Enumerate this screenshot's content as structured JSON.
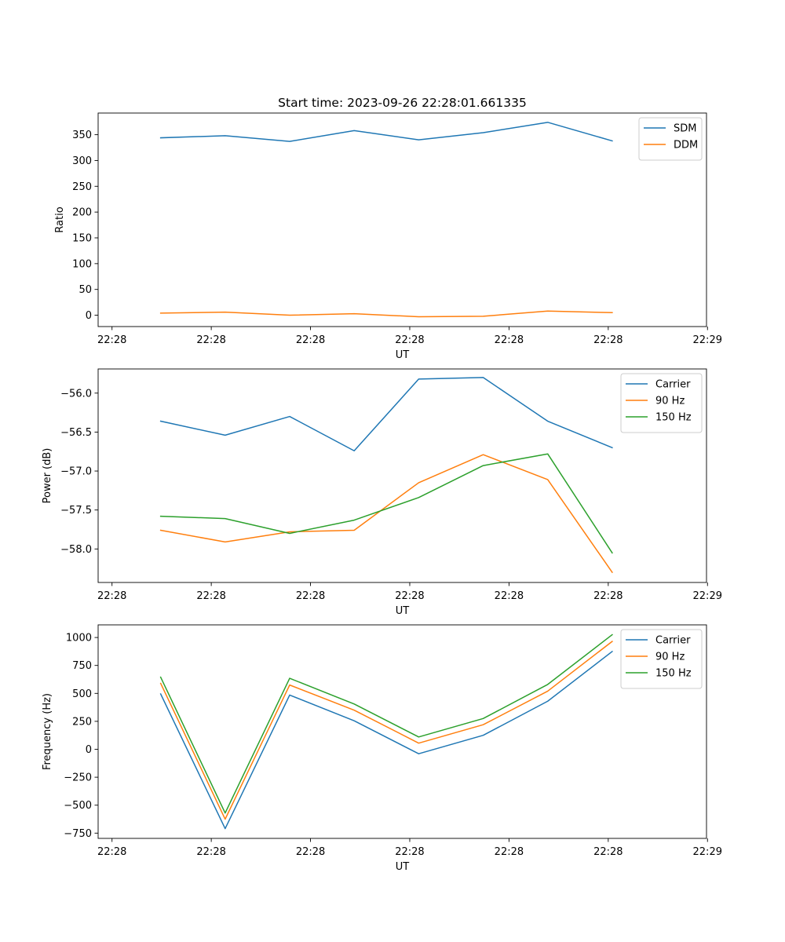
{
  "figure_title": "Start time: 2023-09-26 22:28:01.661335",
  "colors": {
    "blue": "#1f77b4",
    "orange": "#ff7f0e",
    "green": "#2ca02c",
    "axis": "#000000",
    "legend_border": "#cccccc"
  },
  "chart_data": [
    {
      "type": "line",
      "title": "Start time: 2023-09-26 22:28:01.661335",
      "xlabel": "UT",
      "ylabel": "Ratio",
      "x_tick_labels": [
        "22:28",
        "22:28",
        "22:28",
        "22:28",
        "22:28",
        "22:28",
        "22:29"
      ],
      "x_tick_values": [
        0,
        1,
        2,
        3,
        4,
        5,
        6
      ],
      "xlim": [
        -0.14,
        5.99
      ],
      "x": [
        0.49,
        1.14,
        1.79,
        2.44,
        3.09,
        3.74,
        4.39,
        5.04
      ],
      "ylim": [
        -22,
        392
      ],
      "y_ticks": [
        0,
        50,
        100,
        150,
        200,
        250,
        300,
        350
      ],
      "y_tick_labels": [
        "0",
        "50",
        "100",
        "150",
        "200",
        "250",
        "300",
        "350"
      ],
      "legend_location": "top-right",
      "grid": false,
      "series": [
        {
          "name": "SDM",
          "color": "#1f77b4",
          "values": [
            344,
            348,
            337,
            358,
            340,
            354,
            374,
            338
          ]
        },
        {
          "name": "DDM",
          "color": "#ff7f0e",
          "values": [
            4,
            6,
            0,
            3,
            -3,
            -2,
            8,
            5
          ]
        }
      ]
    },
    {
      "type": "line",
      "title": "",
      "xlabel": "UT",
      "ylabel": "Power (dB)",
      "x_tick_labels": [
        "22:28",
        "22:28",
        "22:28",
        "22:28",
        "22:28",
        "22:28",
        "22:29"
      ],
      "x_tick_values": [
        0,
        1,
        2,
        3,
        4,
        5,
        6
      ],
      "xlim": [
        -0.14,
        5.99
      ],
      "x": [
        0.49,
        1.14,
        1.79,
        2.44,
        3.09,
        3.74,
        4.39,
        5.04
      ],
      "ylim": [
        -58.43,
        -55.69
      ],
      "y_ticks": [
        -58.0,
        -57.5,
        -57.0,
        -56.5,
        -56.0
      ],
      "y_tick_labels": [
        "−58.0",
        "−57.5",
        "−57.0",
        "−56.5",
        "−56.0"
      ],
      "legend_location": "top-right",
      "grid": false,
      "series": [
        {
          "name": "Carrier",
          "color": "#1f77b4",
          "values": [
            -56.36,
            -56.54,
            -56.3,
            -56.74,
            -55.82,
            -55.8,
            -56.36,
            -56.7
          ]
        },
        {
          "name": "90 Hz",
          "color": "#ff7f0e",
          "values": [
            -57.76,
            -57.91,
            -57.78,
            -57.76,
            -57.15,
            -56.79,
            -57.11,
            -58.3
          ]
        },
        {
          "name": "150 Hz",
          "color": "#2ca02c",
          "values": [
            -57.58,
            -57.61,
            -57.8,
            -57.63,
            -57.34,
            -56.93,
            -56.78,
            -58.05
          ]
        }
      ]
    },
    {
      "type": "line",
      "title": "",
      "xlabel": "UT",
      "ylabel": "Frequency (Hz)",
      "x_tick_labels": [
        "22:28",
        "22:28",
        "22:28",
        "22:28",
        "22:28",
        "22:28",
        "22:29"
      ],
      "x_tick_values": [
        0,
        1,
        2,
        3,
        4,
        5,
        6
      ],
      "xlim": [
        -0.14,
        5.99
      ],
      "x": [
        0.49,
        1.14,
        1.79,
        2.44,
        3.09,
        3.74,
        4.39,
        5.04
      ],
      "ylim": [
        -797,
        1113
      ],
      "y_ticks": [
        -750,
        -500,
        -250,
        0,
        250,
        500,
        750,
        1000
      ],
      "y_tick_labels": [
        "−750",
        "−500",
        "−250",
        "0",
        "250",
        "500",
        "750",
        "1000"
      ],
      "legend_location": "top-right",
      "grid": false,
      "series": [
        {
          "name": "Carrier",
          "color": "#1f77b4",
          "values": [
            495,
            -710,
            485,
            255,
            -40,
            125,
            430,
            875
          ]
        },
        {
          "name": "90 Hz",
          "color": "#ff7f0e",
          "values": [
            590,
            -625,
            575,
            350,
            55,
            220,
            520,
            965
          ]
        },
        {
          "name": "150 Hz",
          "color": "#2ca02c",
          "values": [
            645,
            -570,
            635,
            405,
            110,
            275,
            580,
            1025
          ]
        }
      ]
    }
  ]
}
